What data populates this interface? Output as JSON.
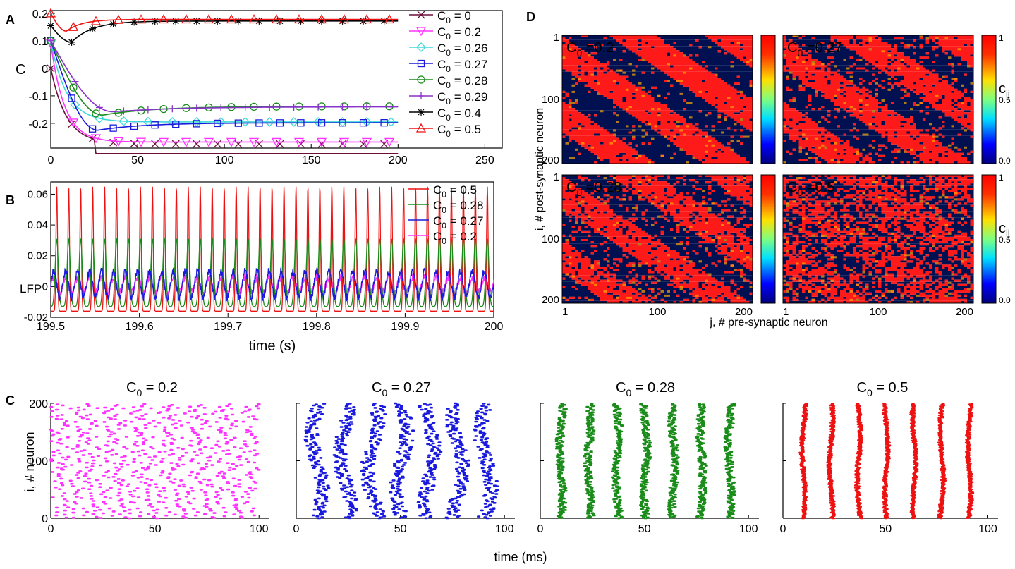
{
  "panel_letters": {
    "A": "A",
    "B": "B",
    "C": "C",
    "D": "D"
  },
  "colors": {
    "c0_0": "#6b0f3a",
    "c0_02": "#ff33ff",
    "c0_026": "#40d8d8",
    "c0_027": "#1a1add",
    "c0_028": "#1a8c1a",
    "c0_029": "#8833cc",
    "c0_04": "#000000",
    "c0_05": "#ee1111",
    "matrix_dark": "#001050",
    "matrix_red": "#ff1a1a"
  },
  "chart_data": [
    {
      "id": "A",
      "type": "line",
      "ylabel": "C",
      "xlabel": "",
      "xlim": [
        0,
        260
      ],
      "ylim": [
        -0.29,
        0.21
      ],
      "xticks": [
        "0",
        "50",
        "100",
        "150",
        "200",
        "250"
      ],
      "yticks": [
        "0.2",
        "0.1",
        "0",
        "-0.1",
        "-0.2"
      ],
      "legend_position": "right",
      "series": [
        {
          "name": "C0 = 0",
          "sub": "0",
          "val": "= 0",
          "color": "#6b0f3a",
          "marker": "x",
          "start": 0,
          "dip": null,
          "final": -0.275,
          "tau": 9
        },
        {
          "name": "C0 = 0.2",
          "sub": "0",
          "val": "= 0.2",
          "color": "#ff33ff",
          "marker": "tri-down",
          "start": 0.09,
          "dip": null,
          "final": -0.268,
          "tau": 8
        },
        {
          "name": "C0 = 0.26",
          "sub": "0",
          "val": "= 0.26",
          "color": "#40d8d8",
          "marker": "diamond",
          "start": 0.1,
          "dip": null,
          "final": -0.195,
          "tau": 9
        },
        {
          "name": "C0 = 0.27",
          "sub": "0",
          "val": "= 0.27",
          "color": "#1a1add",
          "marker": "square",
          "start": 0.1,
          "dip": -0.225,
          "final": -0.198,
          "tau": 9
        },
        {
          "name": "C0 = 0.28",
          "sub": "0",
          "val": "= 0.28",
          "color": "#1a8c1a",
          "marker": "circle",
          "start": 0.1,
          "dip": -0.17,
          "final": -0.138,
          "tau": 10
        },
        {
          "name": "C0 = 0.29",
          "sub": "0",
          "val": "= 0.29",
          "color": "#8833cc",
          "marker": "plus",
          "start": 0.1,
          "dip": -0.158,
          "final": -0.14,
          "tau": 12
        },
        {
          "name": "C0 = 0.4",
          "sub": "0",
          "val": "= 0.4",
          "color": "#000000",
          "marker": "star",
          "start": 0.155,
          "dip": 0.095,
          "final": 0.172,
          "tau": 4
        },
        {
          "name": "C0 = 0.5",
          "sub": "0",
          "val": "= 0.5",
          "color": "#ee1111",
          "marker": "tri-up",
          "start": 0.2,
          "dip": 0.135,
          "final": 0.178,
          "tau": 3
        }
      ]
    },
    {
      "id": "B",
      "type": "line",
      "xlabel": "time (s)",
      "ylabel": "LFP",
      "xlim": [
        199.5,
        200
      ],
      "ylim": [
        -0.02,
        0.068
      ],
      "xticks": [
        "199.5",
        "199.6",
        "199.7",
        "199.8",
        "199.9",
        "200"
      ],
      "yticks": [
        "0.06",
        "0.04",
        "0.02",
        "0",
        "-0.02"
      ],
      "legend_position": "top-right",
      "series": [
        {
          "name": "C0 = 0.5",
          "val": "= 0.5",
          "color": "#ee1111",
          "peak": 0.065,
          "trough": -0.016,
          "period": 0.0135
        },
        {
          "name": "C0 = 0.28",
          "val": "= 0.28",
          "color": "#1a8c1a",
          "peak": 0.031,
          "trough": -0.013,
          "period": 0.0135
        },
        {
          "name": "C0 = 0.27",
          "val": "= 0.27",
          "color": "#1a1add",
          "peak": 0.01,
          "trough": -0.007,
          "period": 0.0135
        },
        {
          "name": "C0 = 0.2",
          "val": "= 0.2",
          "color": "#ff33ff",
          "peak": 0.006,
          "trough": -0.004,
          "period": 0.0135
        }
      ]
    },
    {
      "id": "C",
      "type": "scatter",
      "xlabel": "time (ms)",
      "ylabel": "i, # neuron",
      "xlim": [
        0,
        105
      ],
      "ylim": [
        0,
        200
      ],
      "xticks": [
        "0",
        "50",
        "100"
      ],
      "yticks": [
        "0",
        "100",
        "200"
      ],
      "rasters": [
        {
          "title_val": "= 0.2",
          "color": "#ff33ff",
          "mode": "diagonal",
          "period": 13.5
        },
        {
          "title_val": "= 0.27",
          "color": "#1a1add",
          "mode": "wavy",
          "period": 13.5,
          "width": 2.2
        },
        {
          "title_val": "= 0.28",
          "color": "#1a8c1a",
          "mode": "bands",
          "period": 13.5,
          "width": 1.6
        },
        {
          "title_val": "= 0.5",
          "color": "#ee1111",
          "mode": "bands",
          "period": 13.5,
          "width": 0.7
        }
      ]
    },
    {
      "id": "D",
      "type": "heatmap",
      "xlabel": "j,  # pre-synaptic neuron",
      "ylabel": "i, # post-synaptic neuron",
      "xticks": [
        "1",
        "100",
        "200"
      ],
      "yticks": [
        "1",
        "100",
        "200"
      ],
      "colorbar_ticks": [
        "1",
        "0.5",
        "0.0"
      ],
      "colorbar_label": "c",
      "colorbar_sub": "ij",
      "matrices": [
        {
          "label_val": "=0.2",
          "density": 0.06
        },
        {
          "label_val": "=0.27",
          "density": 0.12
        },
        {
          "label_val": "=0.28",
          "density": 0.16
        },
        {
          "label_val": "=0.5",
          "density": 0.34
        }
      ]
    }
  ]
}
